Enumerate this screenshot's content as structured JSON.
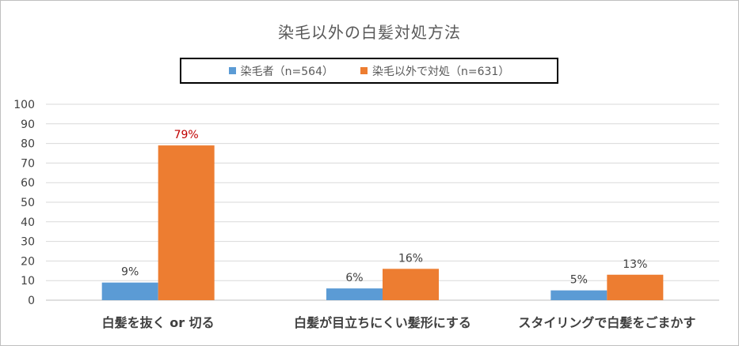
{
  "chart_data": {
    "type": "bar",
    "title": "染毛以外の白髪対処方法",
    "categories": [
      "白髪を抜く or 切る",
      "白髪が目立ちにくい髪形にする",
      "スタイリングで白髪をごまかす"
    ],
    "series": [
      {
        "name": "染毛者（n=564）",
        "values": [
          9,
          6,
          5
        ],
        "labels": [
          "9%",
          "6%",
          "5%"
        ],
        "color": "#5b9bd5",
        "label_color": "#404040"
      },
      {
        "name": "染毛以外で対処（n=631）",
        "values": [
          79,
          16,
          13
        ],
        "labels": [
          "79%",
          "16%",
          "13%"
        ],
        "color": "#ed7d31",
        "label_colors": [
          "#c00000",
          "#404040",
          "#404040"
        ]
      }
    ],
    "ylim": [
      0,
      100
    ],
    "yticks": [
      0,
      10,
      20,
      30,
      40,
      50,
      60,
      70,
      80,
      90,
      100
    ],
    "grid": true,
    "legend_position": "top"
  }
}
